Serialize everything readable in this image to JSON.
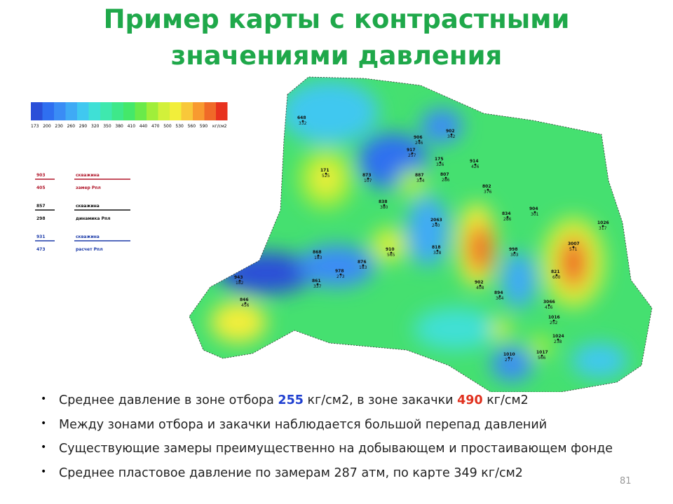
{
  "title": {
    "line1": "Пример карты с контрастными",
    "line2": "значениями давления"
  },
  "scale": {
    "colors": [
      "#2a4fd8",
      "#2f6ff0",
      "#3a8cf5",
      "#3faaf5",
      "#40c8f0",
      "#3fe0d6",
      "#3fe8ae",
      "#3ee88a",
      "#44e86a",
      "#6aea4a",
      "#a0ee3a",
      "#d2f03a",
      "#f2ee3a",
      "#f8c83a",
      "#f89a30",
      "#f06a28",
      "#e8321e"
    ],
    "labels": [
      "173",
      "200",
      "230",
      "260",
      "290",
      "320",
      "350",
      "380",
      "410",
      "440",
      "470",
      "500",
      "530",
      "560",
      "590"
    ],
    "unit": "кг/см2"
  },
  "key": [
    {
      "top": "903",
      "bottom": "405",
      "line1": "скважина",
      "line2": "замер Рпл",
      "color": "#b0162a"
    },
    {
      "top": "857",
      "bottom": "298",
      "line1": "скважина",
      "line2": "динамика Рпл",
      "color": "#111111"
    },
    {
      "top": "931",
      "bottom": "473",
      "line1": "скважина",
      "line2": "расчет Рпл",
      "color": "#1b3aa8"
    }
  ],
  "wells": [
    {
      "number": "648",
      "value": "332"
    },
    {
      "number": "906",
      "value": "246"
    },
    {
      "number": "902",
      "value": "342"
    },
    {
      "number": "917",
      "value": "257"
    },
    {
      "number": "175",
      "value": "326"
    },
    {
      "number": "914",
      "value": "426"
    },
    {
      "number": "171",
      "value": "525"
    },
    {
      "number": "873",
      "value": "107"
    },
    {
      "number": "887",
      "value": "334"
    },
    {
      "number": "807",
      "value": "286"
    },
    {
      "number": "802",
      "value": "376"
    },
    {
      "number": "838",
      "value": "380"
    },
    {
      "number": "834",
      "value": "286"
    },
    {
      "number": "904",
      "value": "301"
    },
    {
      "number": "2063",
      "value": "240"
    },
    {
      "number": "1026",
      "value": "317"
    },
    {
      "number": "910",
      "value": "565"
    },
    {
      "number": "818",
      "value": "328"
    },
    {
      "number": "998",
      "value": "303"
    },
    {
      "number": "3007",
      "value": "571"
    },
    {
      "number": "868",
      "value": "183"
    },
    {
      "number": "876",
      "value": "183"
    },
    {
      "number": "978",
      "value": "273"
    },
    {
      "number": "821",
      "value": "600"
    },
    {
      "number": "861",
      "value": "337"
    },
    {
      "number": "902",
      "value": "408"
    },
    {
      "number": "943",
      "value": "182"
    },
    {
      "number": "894",
      "value": "364"
    },
    {
      "number": "846",
      "value": "456"
    },
    {
      "number": "3066",
      "value": "416"
    },
    {
      "number": "1016",
      "value": "252"
    },
    {
      "number": "1024",
      "value": "238"
    },
    {
      "number": "1017",
      "value": "566"
    },
    {
      "number": "1010",
      "value": "277"
    }
  ],
  "bullets": [
    [
      {
        "text": "Среднее давление в зоне отбора ",
        "color": "#222222"
      },
      {
        "text": "255",
        "color": "#1f3fd0"
      },
      {
        "text": " кг/см2, в зоне закачки ",
        "color": "#222222"
      },
      {
        "text": "490",
        "color": "#e0301e"
      },
      {
        "text": " кг/см2",
        "color": "#222222"
      }
    ],
    [
      {
        "text": "Между зонами отбора и закачки наблюдается большой перепад давлений",
        "color": "#222222"
      }
    ],
    [
      {
        "text": "Существующие замеры преимущественно на добывающем и простаивающем фонде",
        "color": "#222222"
      }
    ],
    [
      {
        "text": "Среднее пластовое давление по замерам 287 атм, по карте 349 кг/см2",
        "color": "#222222"
      }
    ]
  ],
  "page_number": "81"
}
